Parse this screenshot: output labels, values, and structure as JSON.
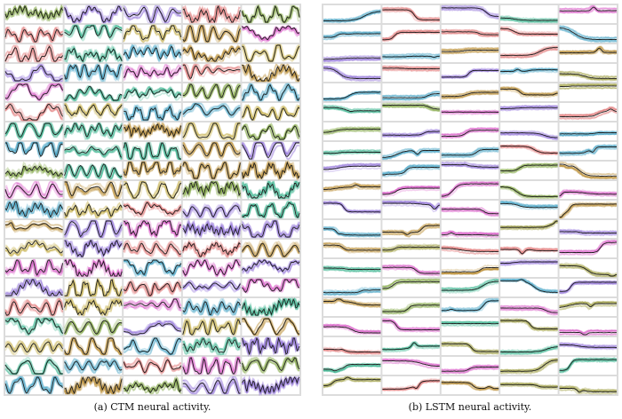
{
  "panels": [
    {
      "id": "a",
      "caption": "(a) CTM neural activity.",
      "style": "oscillatory",
      "colors": [
        "#d957c7",
        "#b8872a",
        "#2eaf88",
        "#8c6cd6",
        "#3b9fc2",
        "#7aa23a",
        "#e07070",
        "#c7b04a"
      ]
    },
    {
      "id": "b",
      "caption": "(b) LSTM neural activity.",
      "style": "saturating",
      "colors": [
        "#b8872a",
        "#7aa23a",
        "#2eaf88",
        "#8c6cd6",
        "#d957c7",
        "#3b9fc2",
        "#e07070",
        "#9c9c3a"
      ]
    }
  ]
}
